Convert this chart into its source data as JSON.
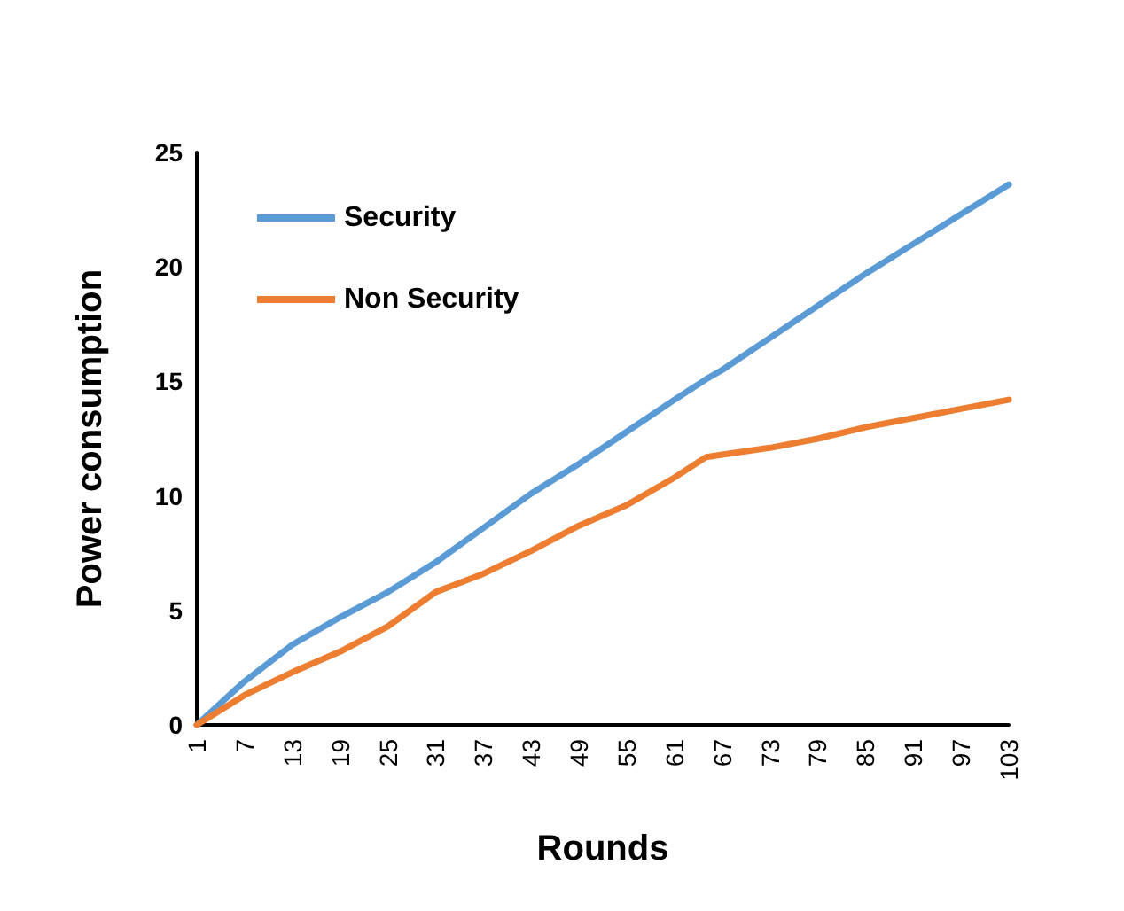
{
  "chart_data": {
    "type": "line",
    "xlabel": "Rounds",
    "ylabel": "Power consumption",
    "x": [
      1,
      7,
      13,
      19,
      25,
      31,
      37,
      43,
      49,
      55,
      61,
      65,
      67,
      73,
      79,
      85,
      91,
      97,
      103
    ],
    "series": [
      {
        "name": "Security",
        "color": "#5b9bd5",
        "values": [
          0,
          1.9,
          3.5,
          4.7,
          5.8,
          7.1,
          8.6,
          10.1,
          11.4,
          12.8,
          14.2,
          15.1,
          15.5,
          16.9,
          18.3,
          19.7,
          21.0,
          22.3,
          23.6
        ]
      },
      {
        "name": "Non Security",
        "color": "#ed7d31",
        "values": [
          0,
          1.3,
          2.3,
          3.2,
          4.3,
          5.8,
          6.6,
          7.6,
          8.7,
          9.6,
          10.8,
          11.7,
          11.8,
          12.1,
          12.5,
          13.0,
          13.4,
          13.8,
          14.2
        ]
      }
    ],
    "xlim": [
      1,
      103
    ],
    "xticks": [
      1,
      7,
      13,
      19,
      25,
      31,
      37,
      43,
      49,
      55,
      61,
      67,
      73,
      79,
      85,
      91,
      97,
      103
    ],
    "ylim": [
      0,
      25
    ],
    "yticks": [
      0,
      5,
      10,
      15,
      20,
      25
    ],
    "legend": "top left"
  }
}
